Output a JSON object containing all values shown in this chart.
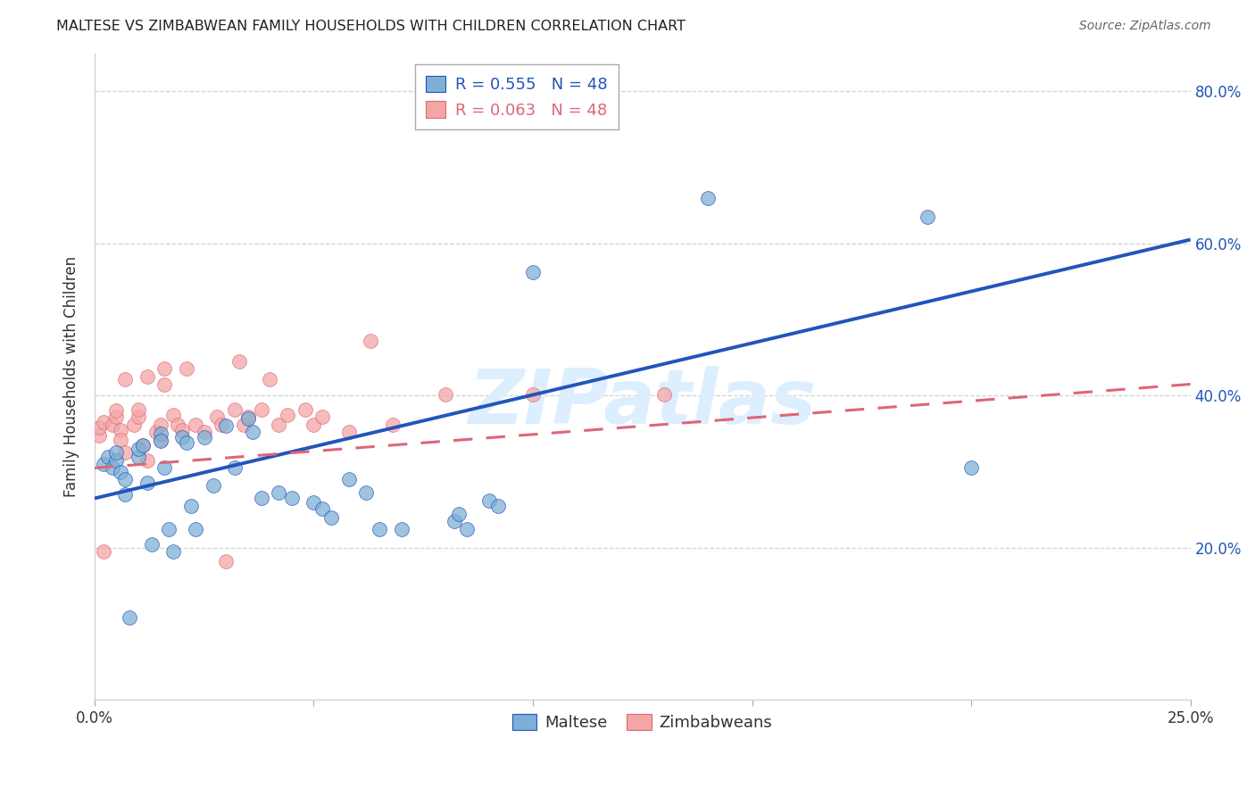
{
  "title": "MALTESE VS ZIMBABWEAN FAMILY HOUSEHOLDS WITH CHILDREN CORRELATION CHART",
  "source": "Source: ZipAtlas.com",
  "ylabel": "Family Households with Children",
  "x_min": 0.0,
  "x_max": 0.25,
  "y_min": 0.0,
  "y_max": 0.85,
  "x_tick_positions": [
    0.0,
    0.05,
    0.1,
    0.15,
    0.2,
    0.25
  ],
  "x_tick_labels": [
    "0.0%",
    "",
    "",
    "",
    "",
    "25.0%"
  ],
  "y_tick_positions": [
    0.2,
    0.4,
    0.6,
    0.8
  ],
  "y_tick_labels": [
    "20.0%",
    "40.0%",
    "60.0%",
    "80.0%"
  ],
  "legend_blue_text": "R = 0.555   N = 48",
  "legend_pink_text": "R = 0.063   N = 48",
  "legend_label_blue": "Maltese",
  "legend_label_pink": "Zimbabweans",
  "blue_color": "#7EB0D5",
  "pink_color": "#F4A6A6",
  "line_blue_color": "#2255BB",
  "line_pink_color": "#DD6677",
  "watermark": "ZIPatlas",
  "watermark_color": "#DDEEFF",
  "blue_line_x0": 0.0,
  "blue_line_y0": 0.265,
  "blue_line_x1": 0.25,
  "blue_line_y1": 0.605,
  "pink_line_x0": 0.0,
  "pink_line_y0": 0.305,
  "pink_line_x1": 0.25,
  "pink_line_y1": 0.415,
  "maltese_x": [
    0.002,
    0.003,
    0.004,
    0.005,
    0.005,
    0.006,
    0.007,
    0.007,
    0.008,
    0.01,
    0.01,
    0.011,
    0.012,
    0.013,
    0.015,
    0.015,
    0.016,
    0.017,
    0.018,
    0.02,
    0.021,
    0.022,
    0.023,
    0.025,
    0.027,
    0.03,
    0.032,
    0.035,
    0.036,
    0.038,
    0.042,
    0.045,
    0.05,
    0.052,
    0.054,
    0.058,
    0.062,
    0.065,
    0.07,
    0.082,
    0.083,
    0.085,
    0.09,
    0.092,
    0.1,
    0.14,
    0.19,
    0.2
  ],
  "maltese_y": [
    0.31,
    0.32,
    0.305,
    0.315,
    0.325,
    0.3,
    0.29,
    0.27,
    0.108,
    0.32,
    0.33,
    0.335,
    0.285,
    0.205,
    0.35,
    0.34,
    0.305,
    0.225,
    0.195,
    0.345,
    0.338,
    0.255,
    0.225,
    0.345,
    0.282,
    0.36,
    0.305,
    0.37,
    0.352,
    0.265,
    0.272,
    0.265,
    0.26,
    0.252,
    0.24,
    0.29,
    0.272,
    0.225,
    0.225,
    0.235,
    0.245,
    0.225,
    0.262,
    0.255,
    0.562,
    0.66,
    0.635,
    0.305
  ],
  "zimbabwean_x": [
    0.001,
    0.001,
    0.002,
    0.002,
    0.004,
    0.005,
    0.005,
    0.006,
    0.006,
    0.007,
    0.007,
    0.009,
    0.01,
    0.01,
    0.011,
    0.012,
    0.012,
    0.014,
    0.015,
    0.015,
    0.016,
    0.016,
    0.018,
    0.019,
    0.02,
    0.021,
    0.023,
    0.025,
    0.028,
    0.029,
    0.03,
    0.032,
    0.033,
    0.034,
    0.035,
    0.038,
    0.04,
    0.042,
    0.044,
    0.048,
    0.05,
    0.052,
    0.058,
    0.063,
    0.068,
    0.08,
    0.1,
    0.13
  ],
  "zimbabwean_y": [
    0.348,
    0.358,
    0.365,
    0.195,
    0.362,
    0.372,
    0.38,
    0.355,
    0.342,
    0.325,
    0.422,
    0.362,
    0.372,
    0.382,
    0.335,
    0.425,
    0.315,
    0.352,
    0.362,
    0.342,
    0.415,
    0.435,
    0.375,
    0.362,
    0.355,
    0.435,
    0.362,
    0.352,
    0.372,
    0.362,
    0.182,
    0.382,
    0.445,
    0.362,
    0.372,
    0.382,
    0.422,
    0.362,
    0.375,
    0.382,
    0.362,
    0.372,
    0.352,
    0.472,
    0.362,
    0.402,
    0.402,
    0.402
  ]
}
